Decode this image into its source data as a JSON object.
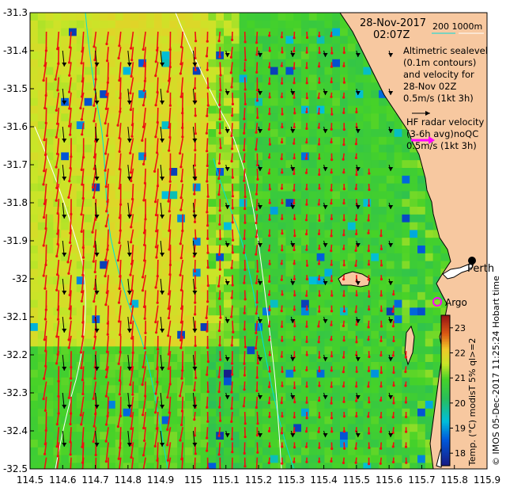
{
  "map": {
    "lon_min": 114.5,
    "lon_max": 115.9,
    "lat_min": -32.5,
    "lat_max": -31.3,
    "lon_ticks": [
      "114.5",
      "114.6",
      "114.7",
      "114.8",
      "114.9",
      "115",
      "115.1",
      "115.2",
      "115.3",
      "115.4",
      "115.5",
      "115.6",
      "115.7",
      "115.8",
      "115.9"
    ],
    "lat_ticks": [
      "-31.3",
      "-31.4",
      "-31.5",
      "-31.6",
      "-31.7",
      "-31.8",
      "-31.9",
      "-32",
      "-32.1",
      "-32.2",
      "-32.3",
      "-32.4",
      "-32.5"
    ]
  },
  "info": {
    "date": "28-Nov-2017",
    "time": "02:07Z",
    "bathy_legend": "200  1000m",
    "alt_line1": "Altimetric sealevel",
    "alt_line2": "(0.1m contours)",
    "alt_line3": "and velocity for",
    "alt_line4": "28-Nov 02Z",
    "alt_line5": "0.5m/s (1kt 3h)",
    "hf_line1": "HF radar velocity",
    "hf_line2": "(3-6h avg)noQC",
    "hf_line3": "0.5m/s (1kt 3h)"
  },
  "places": {
    "perth": "Perth",
    "argo": "Argo"
  },
  "colorbar": {
    "ticks": [
      "23",
      "22",
      "21",
      "20",
      "19",
      "18"
    ],
    "label": "Temp. (°C) modisT 5% ql>=2"
  },
  "credit": "© IMOS 05-Dec-2017 11:25:24 Hobart time",
  "colors": {
    "land": "#f7c8a0",
    "coast_line": "#000000",
    "hf_arrow": "#ee1111",
    "alt_arrow": "#000000",
    "bathy_200": "#00dddd",
    "bathy_1000": "#ffffff",
    "argo": "#ff00ff",
    "hf_legend_arrow": "#ff00ff"
  }
}
